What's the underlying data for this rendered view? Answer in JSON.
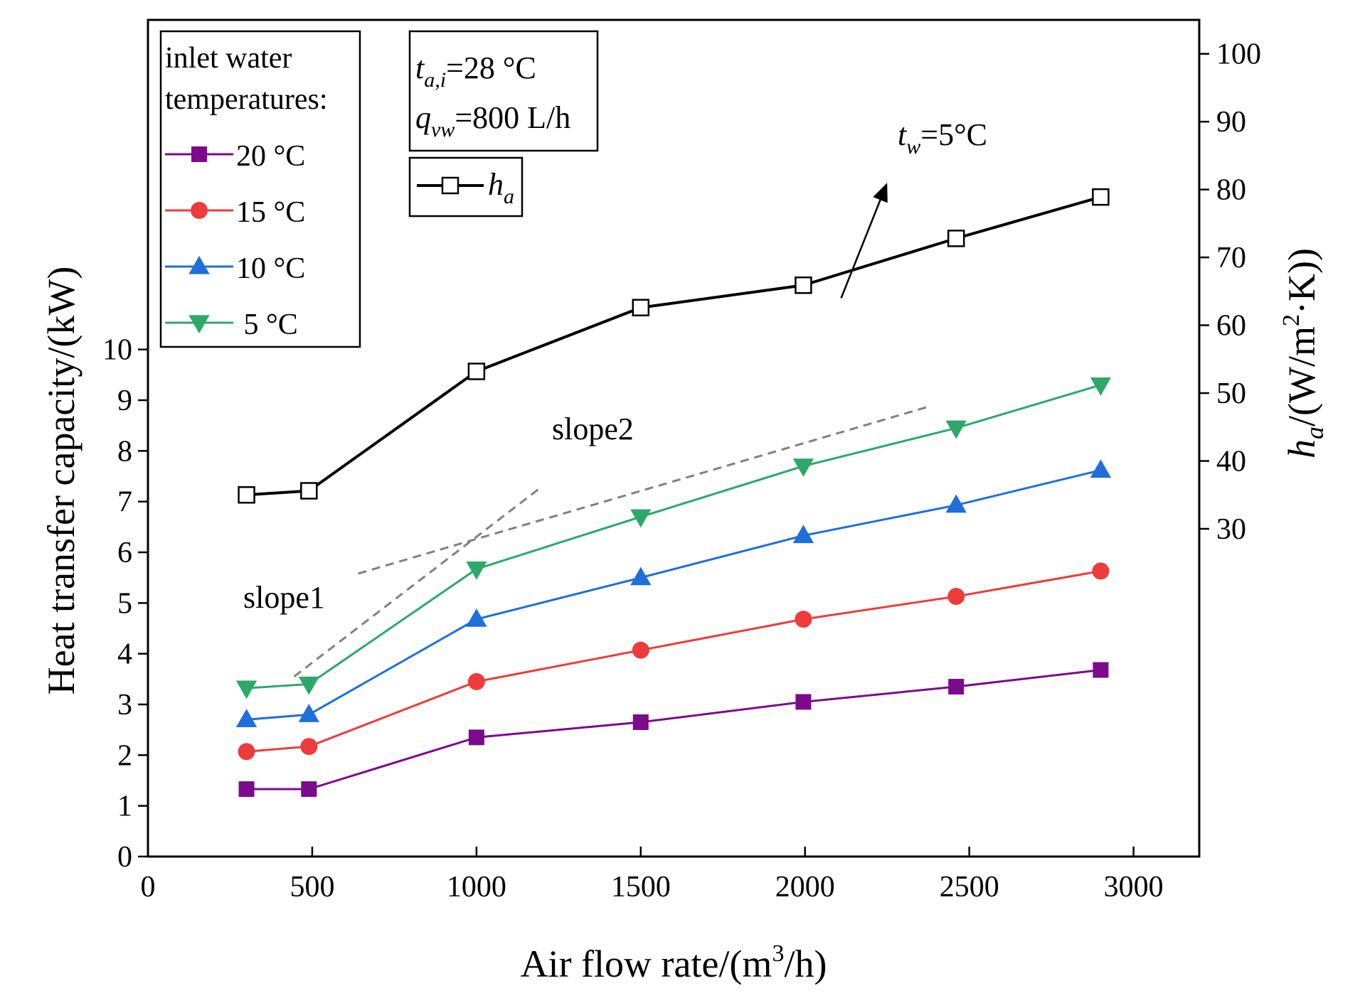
{
  "chart_data": {
    "type": "line",
    "xlabel": {
      "prefix": "Air flow rate/(m",
      "sup": "3",
      "suffix": "/h)"
    },
    "ylabel": "Heat transfer capacity/(kW)",
    "y2label": {
      "base": "h",
      "sub": "a",
      "prefix": "/(W/m",
      "sup": "2",
      "suffix": "·K))"
    },
    "xlim": [
      0,
      3200
    ],
    "ylim": [
      0,
      16.5
    ],
    "y2lim": [
      -18.3,
      105
    ],
    "x_ticks": [
      0,
      500,
      1000,
      1500,
      2000,
      2500,
      3000
    ],
    "y_ticks": [
      0,
      1,
      2,
      3,
      4,
      5,
      6,
      7,
      8,
      9,
      10
    ],
    "y2_ticks": [
      30,
      40,
      50,
      60,
      70,
      80,
      90,
      100
    ],
    "x": [
      300,
      490,
      1000,
      1500,
      1995,
      2460,
      2900
    ],
    "series": [
      {
        "name": "20 °C",
        "color": "#7b0a8c",
        "marker": "square",
        "values": [
          1.33,
          1.33,
          2.35,
          2.65,
          3.05,
          3.35,
          3.68
        ]
      },
      {
        "name": "15 °C",
        "color": "#ee3b3b",
        "marker": "circle",
        "values": [
          2.07,
          2.17,
          3.45,
          4.07,
          4.68,
          5.13,
          5.63
        ]
      },
      {
        "name": "10 °C",
        "color": "#1e6fd9",
        "marker": "triangle-up",
        "values": [
          2.7,
          2.8,
          4.68,
          5.5,
          6.33,
          6.93,
          7.62
        ]
      },
      {
        "name": "5 °C",
        "color": "#2ea86a",
        "marker": "triangle-down",
        "values": [
          3.32,
          3.4,
          5.67,
          6.7,
          7.7,
          8.45,
          9.3
        ]
      }
    ],
    "secondary_series": {
      "name": "h_a",
      "color": "#000000",
      "marker": "open-square",
      "values": [
        35.0,
        35.6,
        53.2,
        62.6,
        65.9,
        72.8,
        78.9
      ]
    },
    "legend": {
      "title_line1": "inlet water",
      "title_line2": "temperatures:",
      "labels": [
        "20 °C",
        "15 °C",
        "10 °C",
        " 5 °C"
      ]
    },
    "conditions": {
      "t_base": "t",
      "t_sub": "a,i",
      "t_value": "=28 °C",
      "q_base": "q",
      "q_sub": "vw",
      "q_value": "=800 L/h",
      "h_base": "h",
      "h_sub": "a"
    },
    "annotations": {
      "tw_base": "t",
      "tw_sub": "w",
      "tw_value": "=5°C",
      "slope1": "slope1",
      "slope2": "slope2"
    },
    "slope_lines": [
      {
        "name": "slope1",
        "x": [
          445,
          1190
        ],
        "y": [
          3.55,
          7.25
        ]
      },
      {
        "name": "slope2",
        "x": [
          640,
          2380
        ],
        "y": [
          5.58,
          8.88
        ]
      }
    ],
    "arrow": {
      "from": [
        2110,
        64.0
      ],
      "to": [
        2250,
        81.0
      ]
    }
  }
}
